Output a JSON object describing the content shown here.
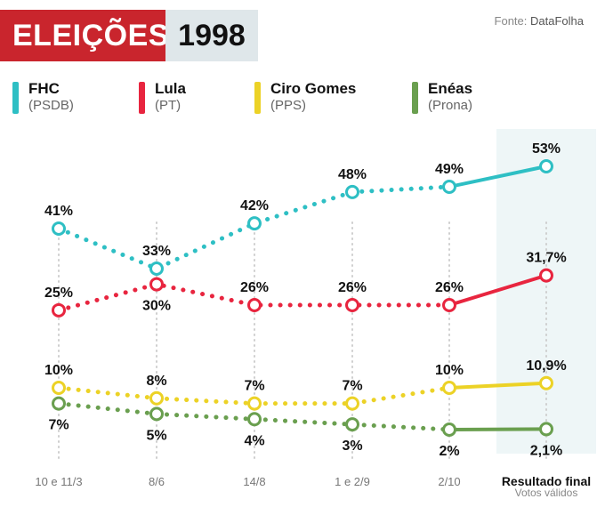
{
  "header": {
    "title": "ELEIÇÕES",
    "year": "1998",
    "source_label": "Fonte:",
    "source_name": "DataFolha"
  },
  "colors": {
    "title_red": "#c9252d",
    "title_grey": "#dfe7ea",
    "final_band": "#eef6f7"
  },
  "legend": [
    {
      "name": "FHC",
      "party": "(PSDB)",
      "color": "#2ebfc4"
    },
    {
      "name": "Lula",
      "party": "(PT)",
      "color": "#e8253f"
    },
    {
      "name": "Ciro Gomes",
      "party": "(PPS)",
      "color": "#ecd226"
    },
    {
      "name": "Enéas",
      "party": "(Prona)",
      "color": "#6a9f4f"
    }
  ],
  "chart_data": {
    "type": "line",
    "categories": [
      "10 e 11/3",
      "8/6",
      "14/8",
      "1 e 2/9",
      "2/10",
      "Resultado final"
    ],
    "final_subtitle": "Votos válidos",
    "ylim": [
      0,
      55
    ],
    "grid": false,
    "series": [
      {
        "name": "FHC",
        "color": "#2ebfc4",
        "values": [
          41,
          33,
          42,
          48,
          49,
          53
        ],
        "labels": [
          "41%",
          "33%",
          "42%",
          "48%",
          "49%",
          "53%"
        ],
        "label_pos": [
          "above",
          "above",
          "above",
          "above",
          "above",
          "above"
        ]
      },
      {
        "name": "Lula",
        "color": "#e8253f",
        "values": [
          25,
          30,
          26,
          26,
          26,
          31.7
        ],
        "labels": [
          "25%",
          "30%",
          "26%",
          "26%",
          "26%",
          "31,7%"
        ],
        "label_pos": [
          "above",
          "below",
          "above",
          "above",
          "above",
          "above"
        ]
      },
      {
        "name": "Ciro Gomes",
        "color": "#ecd226",
        "values": [
          10,
          8,
          7,
          7,
          10,
          10.9
        ],
        "labels": [
          "10%",
          "8%",
          "7%",
          "7%",
          "10%",
          "10,9%"
        ],
        "label_pos": [
          "above",
          "above",
          "above",
          "above",
          "above",
          "above"
        ]
      },
      {
        "name": "Enéas",
        "color": "#6a9f4f",
        "values": [
          7,
          5,
          4,
          3,
          2,
          2.1
        ],
        "labels": [
          "7%",
          "5%",
          "4%",
          "3%",
          "2%",
          "2,1%"
        ],
        "label_pos": [
          "below",
          "below",
          "below",
          "below",
          "below",
          "below"
        ]
      }
    ]
  }
}
